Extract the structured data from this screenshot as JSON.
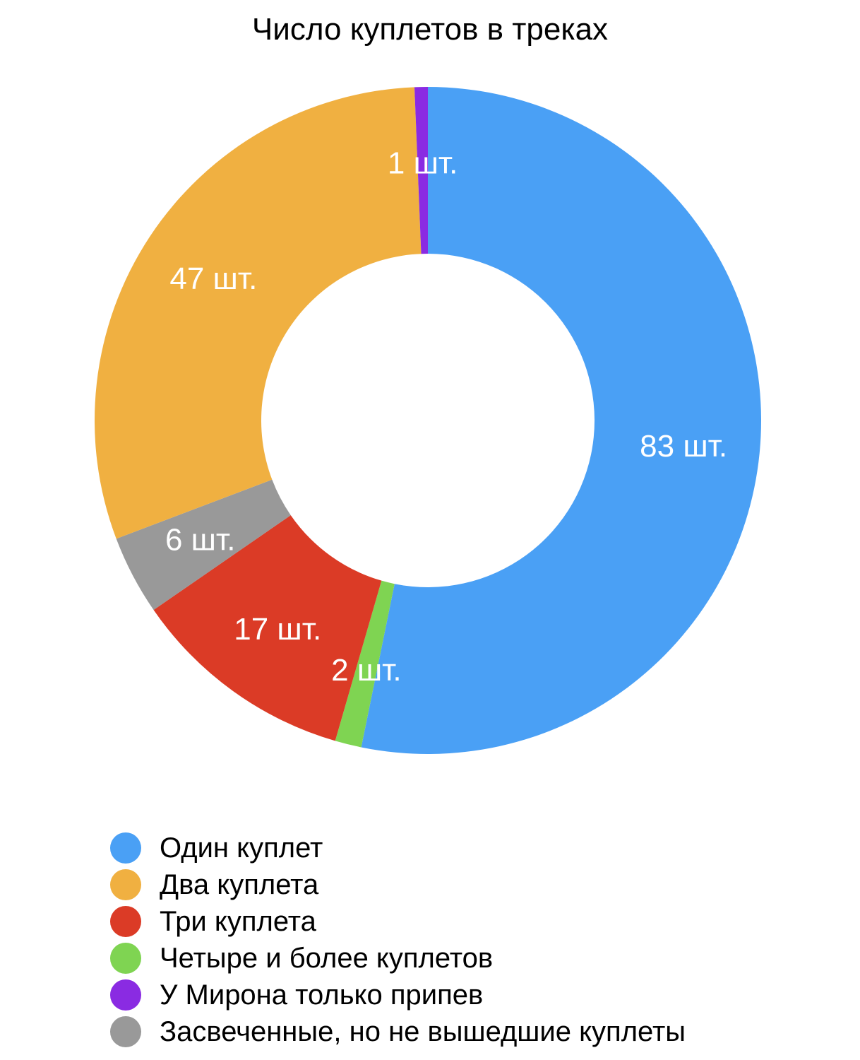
{
  "chart_data": {
    "type": "pie",
    "subtype": "donut",
    "title": "Число куплетов в треках",
    "series": [
      {
        "name": "Один куплет",
        "value": 83,
        "label": "83 шт.",
        "color": "#4aa0f5"
      },
      {
        "name": "Четыре и более куплетов",
        "value": 2,
        "label": "2 шт.",
        "color": "#7fd452"
      },
      {
        "name": "Три куплета",
        "value": 17,
        "label": "17 шт.",
        "color": "#db3b26"
      },
      {
        "name": "Засвеченные, но не вышедшие куплеты",
        "value": 6,
        "label": "6 шт.",
        "color": "#999999"
      },
      {
        "name": "Два куплета",
        "value": 47,
        "label": "47 шт.",
        "color": "#f0b041"
      },
      {
        "name": "У Мирона только припев",
        "value": 1,
        "label": "1 шт.",
        "color": "#8a2be2"
      }
    ],
    "legend": {
      "position": "bottom-left",
      "order": [
        "Один куплет",
        "Два куплета",
        "Три куплета",
        "Четыре и более куплетов",
        "У Мирона только припев",
        "Засвеченные, но не вышедшие куплеты"
      ]
    }
  }
}
